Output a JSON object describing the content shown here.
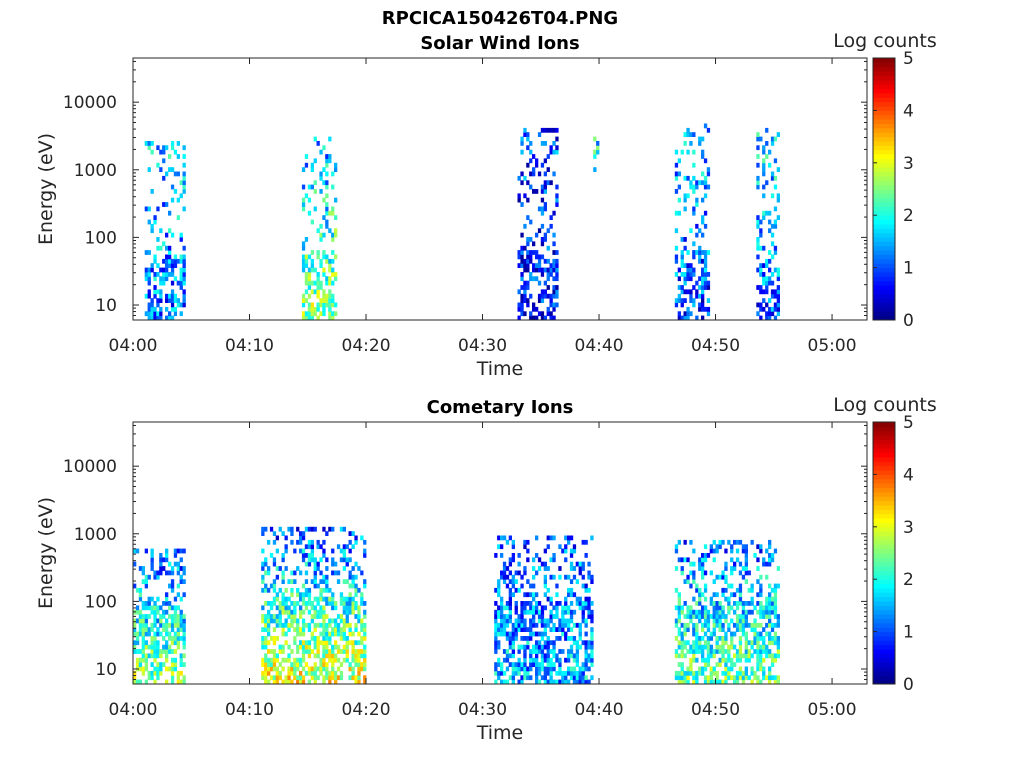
{
  "figure_title": "RPCICA150426T04.PNG",
  "colormap": [
    "#00007f",
    "#0000ff",
    "#0080ff",
    "#00ffff",
    "#80ff80",
    "#ffff00",
    "#ff8000",
    "#ff0000",
    "#7f0000"
  ],
  "chart_data": [
    {
      "type": "heatmap",
      "title": "Solar Wind Ions",
      "xlabel": "Time",
      "ylabel": "Energy (eV)",
      "y_scale": "log",
      "xlim": [
        "04:00",
        "05:03"
      ],
      "ylim": [
        6,
        45000
      ],
      "x_ticks": [
        "04:00",
        "04:10",
        "04:20",
        "04:30",
        "04:40",
        "04:50",
        "05:00"
      ],
      "y_ticks": [
        "10",
        "100",
        "1000",
        "10000"
      ],
      "colorbar": {
        "label": "Log counts",
        "range": [
          0,
          5
        ],
        "ticks": [
          "0",
          "1",
          "2",
          "3",
          "4",
          "5"
        ]
      },
      "grid": false,
      "bursts": [
        {
          "start": "04:01",
          "end": "04:04.5",
          "emin": 6,
          "emax": 2500,
          "low_level": 1.2,
          "high_level": 1.6
        },
        {
          "start": "04:14.5",
          "end": "04:17.5",
          "emin": 6,
          "emax": 3000,
          "low_level": 2.6,
          "high_level": 1.4
        },
        {
          "start": "04:33",
          "end": "04:36.5",
          "emin": 6,
          "emax": 4000,
          "low_level": 0.6,
          "high_level": 1.0
        },
        {
          "start": "04:39.5",
          "end": "04:40",
          "emin": 1000,
          "emax": 3500,
          "low_level": 1.8,
          "high_level": 1.8
        },
        {
          "start": "04:46.5",
          "end": "04:49.5",
          "emin": 6,
          "emax": 5000,
          "low_level": 0.9,
          "high_level": 1.5
        },
        {
          "start": "04:53.5",
          "end": "04:55.5",
          "emin": 6,
          "emax": 4000,
          "low_level": 1.0,
          "high_level": 1.8
        }
      ]
    },
    {
      "type": "heatmap",
      "title": "Cometary Ions",
      "xlabel": "Time",
      "ylabel": "Energy (eV)",
      "y_scale": "log",
      "xlim": [
        "04:00",
        "05:03"
      ],
      "ylim": [
        6,
        45000
      ],
      "x_ticks": [
        "04:00",
        "04:10",
        "04:20",
        "04:30",
        "04:40",
        "04:50",
        "05:00"
      ],
      "y_ticks": [
        "10",
        "100",
        "1000",
        "10000"
      ],
      "colorbar": {
        "label": "Log counts",
        "range": [
          0,
          5
        ],
        "ticks": [
          "0",
          "1",
          "2",
          "3",
          "4",
          "5"
        ]
      },
      "grid": false,
      "bursts": [
        {
          "start": "04:00",
          "end": "04:04.5",
          "emin": 6,
          "emax": 600,
          "low_level": 2.6,
          "high_level": 1.0
        },
        {
          "start": "04:11",
          "end": "04:20",
          "emin": 6,
          "emax": 1100,
          "low_level": 3.0,
          "high_level": 1.0
        },
        {
          "start": "04:31",
          "end": "04:39.5",
          "emin": 6,
          "emax": 900,
          "low_level": 1.5,
          "high_level": 1.0
        },
        {
          "start": "04:46.5",
          "end": "04:55.5",
          "emin": 6,
          "emax": 800,
          "low_level": 2.4,
          "high_level": 1.1
        }
      ]
    }
  ]
}
